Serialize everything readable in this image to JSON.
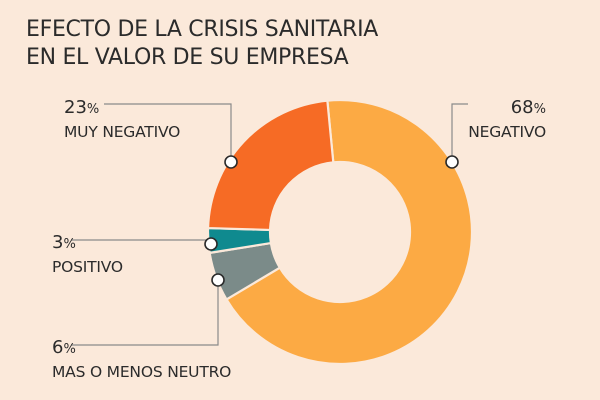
{
  "chart_data": {
    "type": "pie",
    "title": "EFECTO DE LA CRISIS SANITARIA EN EL VALOR DE SU EMPRESA",
    "title_lines": [
      "EFECTO DE LA CRISIS SANITARIA",
      "EN EL VALOR DE SU EMPRESA"
    ],
    "donut": true,
    "percent_sign": "%",
    "categories": [
      "NEGATIVO",
      "MAS O MENOS NEUTRO",
      "POSITIVO",
      "MUY NEGATIVO"
    ],
    "values": [
      68,
      6,
      3,
      23
    ],
    "colors": [
      "#fcaa44",
      "#7b8b89",
      "#0f8a8f",
      "#f66b25"
    ],
    "legend": "labels-around"
  }
}
